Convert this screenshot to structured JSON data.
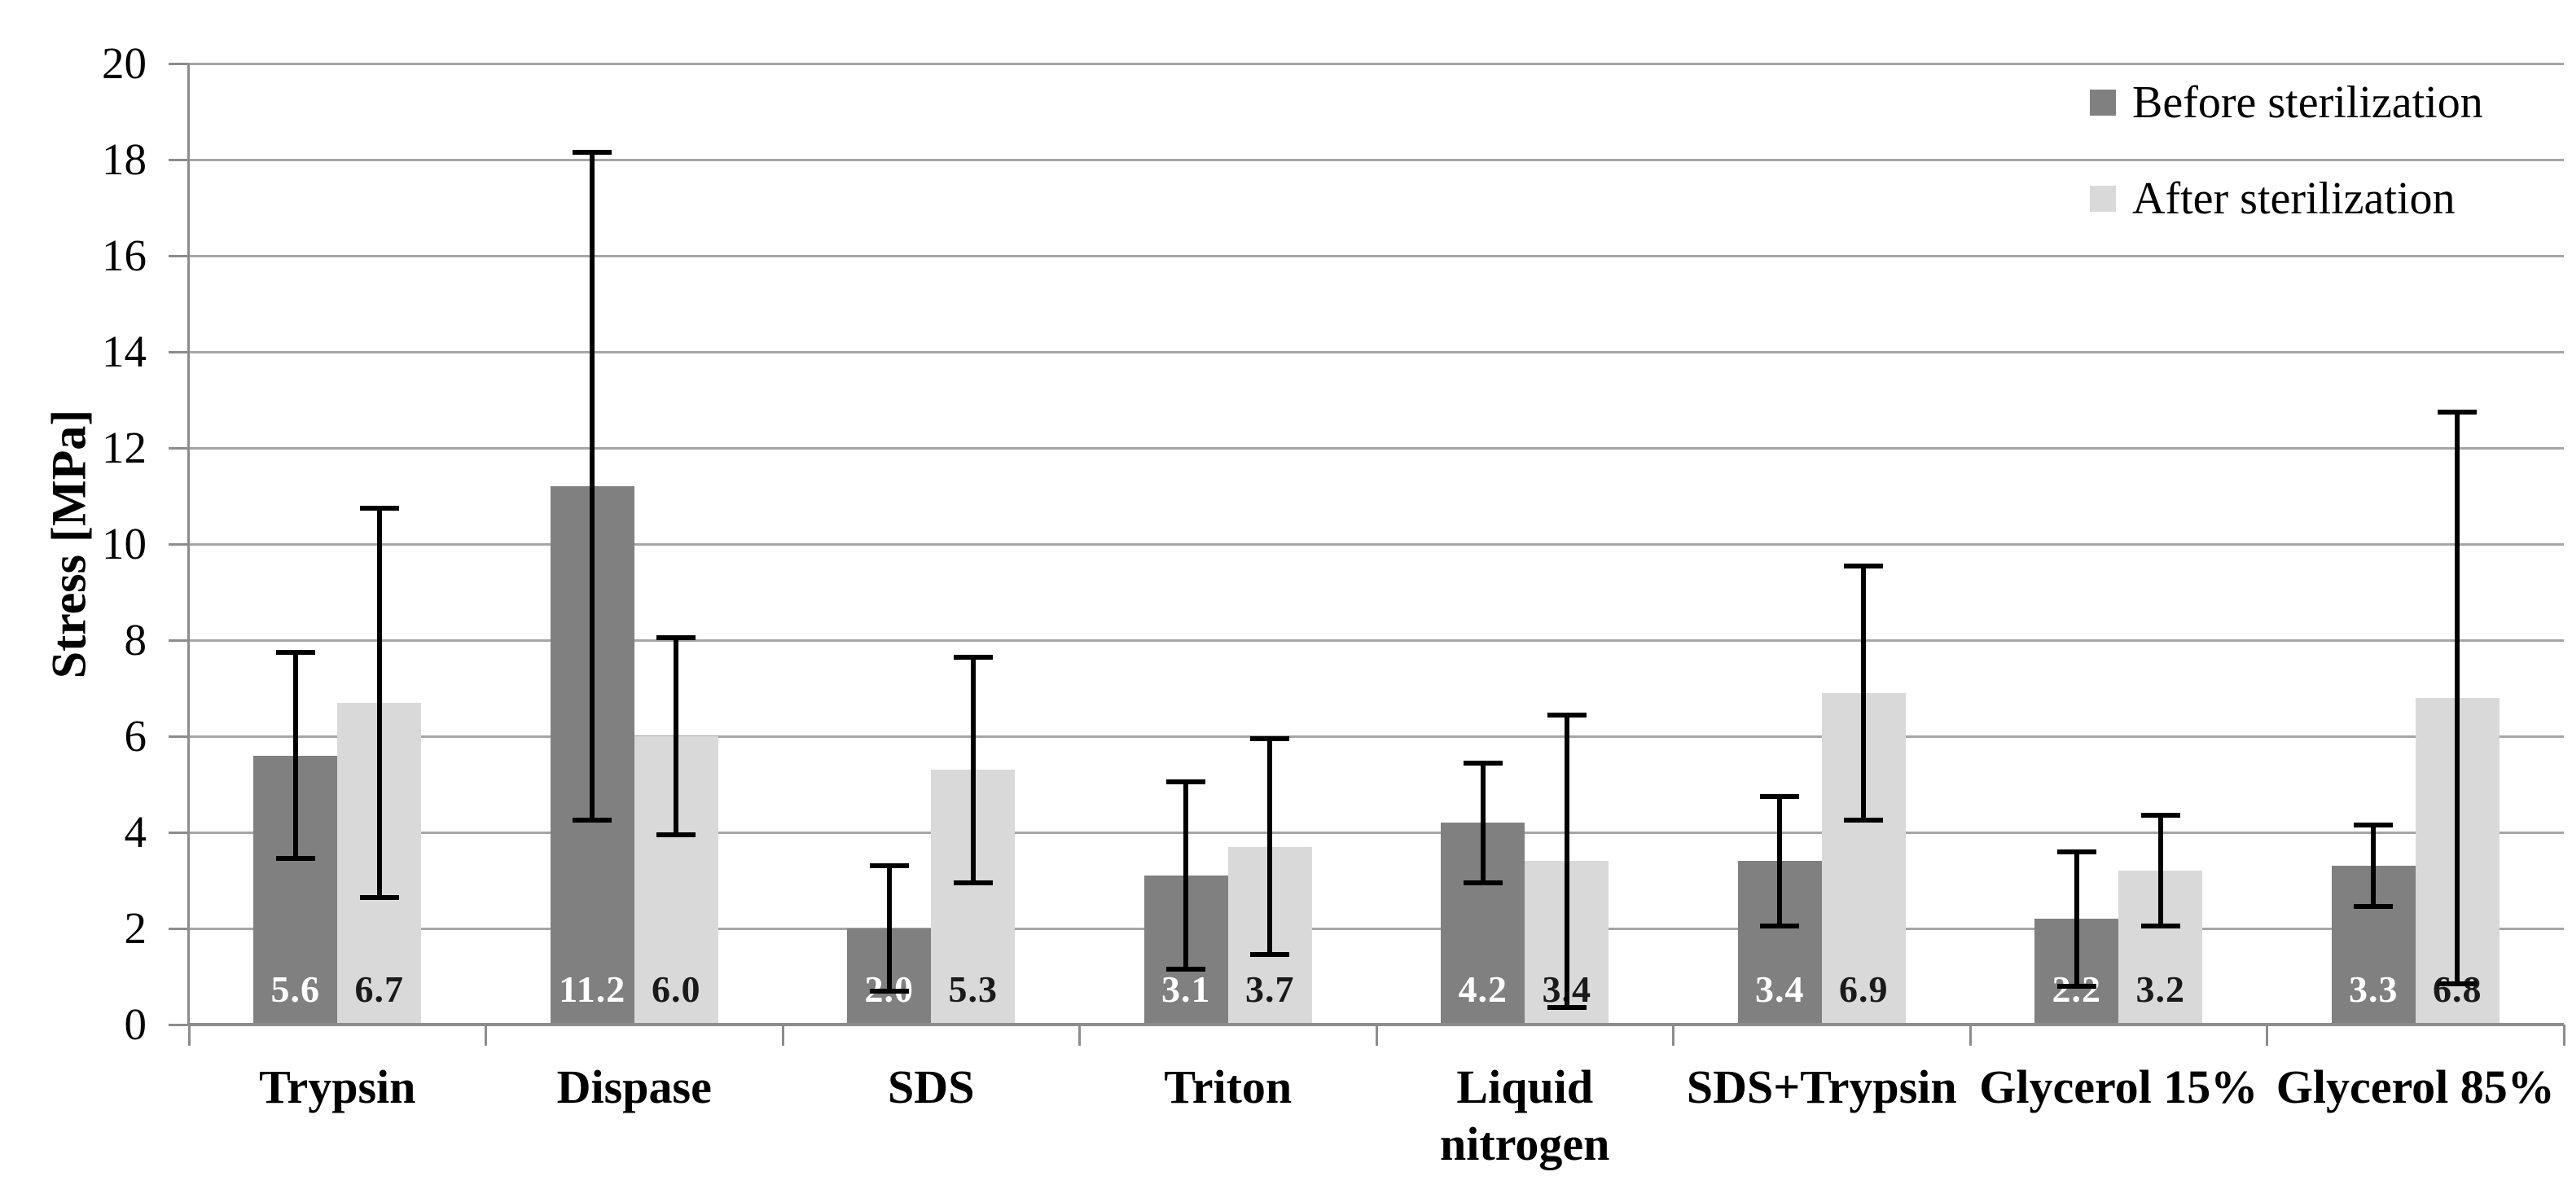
{
  "chart_data": {
    "type": "bar",
    "title": "",
    "xlabel": "",
    "ylabel": "Stress [MPa]",
    "ylim": [
      0,
      20
    ],
    "ytick_step": 2,
    "yticks": [
      "0",
      "2",
      "4",
      "6",
      "8",
      "10",
      "12",
      "14",
      "16",
      "18",
      "20"
    ],
    "grid": true,
    "legend_position": "top-right-inside",
    "categories": [
      "Trypsin",
      "Dispase",
      "SDS",
      "Triton",
      "Liquid nitrogen",
      "SDS+Trypsin",
      "Glycerol 15%",
      "Glycerol 85%"
    ],
    "series": [
      {
        "name": "Before sterilization",
        "color": "#808080",
        "value_label_color": "#FFFFFF",
        "values": [
          5.6,
          11.2,
          2.0,
          3.1,
          4.2,
          3.4,
          2.2,
          3.3
        ],
        "labels": [
          "5.6",
          "11.2",
          "2.0",
          "3.1",
          "4.2",
          "3.4",
          "2.2",
          "3.3"
        ],
        "errors": [
          2.2,
          7.0,
          1.35,
          2.0,
          1.3,
          1.4,
          1.45,
          0.9
        ]
      },
      {
        "name": "After sterilization",
        "color": "#D9D9D9",
        "value_label_color": "#1A1A1A",
        "values": [
          6.7,
          6.0,
          5.3,
          3.7,
          3.4,
          6.9,
          3.2,
          6.8
        ],
        "labels": [
          "6.7",
          "6.0",
          "5.3",
          "3.7",
          "3.4",
          "6.9",
          "3.2",
          "6.8"
        ],
        "errors": [
          4.1,
          2.1,
          2.4,
          2.3,
          3.1,
          2.7,
          1.2,
          6.0
        ]
      }
    ],
    "error_bar_color": "#000000",
    "gridline_color": "#A6A6A6",
    "axis_color": "#8C8C8C",
    "tick_label_color": "#000000",
    "background_color": "#FFFFFF"
  }
}
